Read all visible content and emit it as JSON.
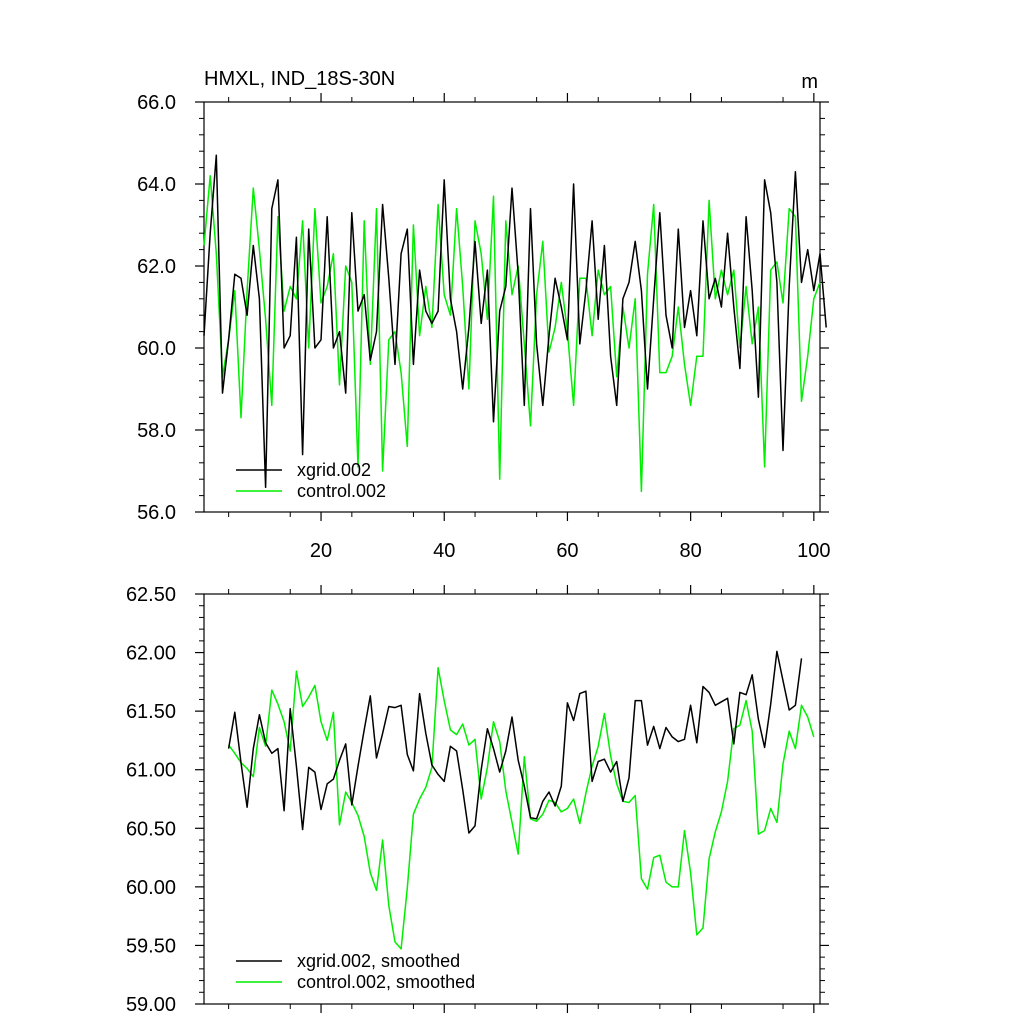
{
  "chart_data": [
    {
      "type": "line",
      "title": "HMXL, IND_18S-30N",
      "units": "m",
      "xlim": [
        1,
        101
      ],
      "ylim": [
        56.0,
        66.0
      ],
      "x_ticks": [
        20,
        40,
        60,
        80,
        100
      ],
      "x_tick_labels": [
        "20",
        "40",
        "60",
        "80",
        "100"
      ],
      "y_ticks": [
        56.0,
        58.0,
        60.0,
        62.0,
        64.0,
        66.0
      ],
      "y_tick_labels": [
        "56.0",
        "58.0",
        "60.0",
        "62.0",
        "64.0",
        "66.0"
      ],
      "legend_position": "bottom-left",
      "series": [
        {
          "name": "xgrid.002",
          "color": "#000000",
          "values": [
            60.3,
            62.8,
            64.7,
            58.9,
            60.2,
            61.8,
            61.7,
            60.8,
            62.5,
            61.2,
            56.6,
            63.4,
            64.1,
            60.0,
            60.3,
            62.7,
            57.4,
            62.9,
            60.0,
            60.2,
            63.2,
            60.0,
            60.4,
            58.9,
            63.3,
            60.9,
            61.3,
            59.7,
            60.4,
            63.5,
            61.7,
            59.6,
            62.3,
            62.9,
            59.6,
            61.9,
            60.9,
            60.6,
            60.9,
            64.1,
            61.2,
            60.4,
            59.0,
            60.5,
            62.6,
            60.6,
            61.9,
            58.2,
            60.9,
            61.5,
            63.9,
            61.8,
            58.6,
            63.4,
            60.1,
            58.6,
            60.3,
            61.7,
            61.0,
            60.2,
            64.0,
            60.1,
            61.4,
            63.1,
            60.7,
            62.5,
            59.8,
            58.6,
            61.2,
            61.6,
            62.6,
            61.4,
            59.0,
            61.2,
            63.3,
            60.8,
            60.0,
            62.9,
            60.5,
            61.4,
            60.3,
            63.1,
            61.2,
            61.7,
            61.0,
            62.8,
            61.0,
            59.5,
            63.2,
            61.4,
            58.8,
            64.1,
            63.3,
            61.6,
            57.5,
            61.5,
            64.3,
            61.6,
            62.4,
            61.4,
            62.3,
            60.5
          ]
        },
        {
          "name": "control.002",
          "color": "#00ee00",
          "values": [
            62.5,
            64.2,
            62.3,
            59.3,
            60.2,
            61.4,
            58.3,
            61.4,
            63.9,
            62.4,
            60.7,
            58.6,
            63.2,
            60.9,
            61.5,
            61.2,
            63.1,
            60.0,
            63.4,
            61.1,
            61.5,
            62.3,
            59.1,
            62.0,
            61.6,
            57.1,
            63.1,
            59.6,
            63.4,
            57.0,
            60.2,
            60.4,
            59.4,
            57.6,
            63.0,
            60.3,
            61.5,
            60.5,
            63.5,
            61.3,
            60.8,
            63.4,
            61.5,
            59.0,
            63.1,
            62.3,
            60.7,
            63.7,
            56.8,
            63.1,
            61.3,
            62.0,
            60.1,
            58.1,
            61.3,
            62.6,
            59.9,
            60.5,
            61.6,
            60.4,
            58.6,
            61.7,
            61.7,
            60.3,
            61.9,
            61.3,
            61.5,
            59.3,
            61.0,
            60.0,
            61.2,
            56.5,
            61.8,
            63.5,
            59.4,
            59.4,
            59.8,
            61.0,
            59.6,
            58.6,
            59.8,
            59.8,
            63.6,
            61.2,
            61.9,
            61.3,
            61.9,
            60.0,
            61.5,
            60.1,
            61.0,
            57.1,
            61.9,
            62.1,
            61.1,
            63.4,
            63.2,
            58.7,
            59.8,
            61.2,
            61.6
          ]
        }
      ]
    },
    {
      "type": "line",
      "xlim": [
        1,
        101
      ],
      "ylim": [
        59.0,
        62.5
      ],
      "x_ticks": [
        20,
        40,
        60,
        80,
        100
      ],
      "y_ticks": [
        59.0,
        59.5,
        60.0,
        60.5,
        61.0,
        61.5,
        62.0,
        62.5
      ],
      "y_tick_labels": [
        "59.00",
        "59.50",
        "60.00",
        "60.50",
        "61.00",
        "61.50",
        "62.00",
        "62.50"
      ],
      "legend_position": "bottom-left",
      "series": [
        {
          "name": "xgrid.002, smoothed",
          "color": "#000000",
          "x_start": 5,
          "values": [
            61.18,
            61.49,
            61.06,
            60.68,
            61.18,
            61.47,
            61.23,
            61.14,
            61.18,
            60.65,
            61.52,
            61.03,
            60.49,
            61.02,
            60.98,
            60.66,
            60.88,
            60.92,
            61.08,
            61.22,
            60.7,
            61.03,
            61.34,
            61.63,
            61.1,
            61.31,
            61.54,
            61.53,
            61.55,
            61.13,
            60.99,
            61.65,
            61.31,
            61.04,
            60.96,
            60.9,
            61.2,
            61.16,
            60.83,
            60.46,
            60.52,
            61.0,
            61.35,
            61.18,
            60.98,
            61.16,
            61.45,
            61.08,
            60.86,
            60.59,
            60.58,
            60.73,
            60.81,
            60.69,
            60.86,
            61.57,
            61.42,
            61.65,
            61.67,
            60.9,
            61.07,
            61.09,
            60.98,
            61.07,
            60.73,
            60.93,
            61.59,
            61.59,
            61.21,
            61.37,
            61.18,
            61.36,
            61.28,
            61.24,
            61.26,
            61.55,
            61.23,
            61.71,
            61.66,
            61.55,
            61.58,
            61.61,
            61.22,
            61.66,
            61.64,
            61.81,
            61.43,
            61.19,
            61.56,
            62.01,
            61.76,
            61.51,
            61.55,
            61.95
          ]
        },
        {
          "name": "control.002, smoothed",
          "color": "#00ee00",
          "x_start": 5,
          "values": [
            61.21,
            61.14,
            61.06,
            61.01,
            60.94,
            61.36,
            61.2,
            61.68,
            61.56,
            61.41,
            61.16,
            61.84,
            61.54,
            61.62,
            61.72,
            61.41,
            61.25,
            61.49,
            60.53,
            60.81,
            60.72,
            60.61,
            60.43,
            60.12,
            59.97,
            60.4,
            59.84,
            59.53,
            59.47,
            59.99,
            60.62,
            60.75,
            60.85,
            61.02,
            61.87,
            61.59,
            61.34,
            61.3,
            61.39,
            61.21,
            61.26,
            60.75,
            61.02,
            61.41,
            61.24,
            60.82,
            60.55,
            60.28,
            61.11,
            60.58,
            60.56,
            60.62,
            60.74,
            60.72,
            60.64,
            60.67,
            60.75,
            60.54,
            60.8,
            61.03,
            61.2,
            61.48,
            61.12,
            60.88,
            60.73,
            60.72,
            60.78,
            60.07,
            59.98,
            60.25,
            60.27,
            60.04,
            60.0,
            60.0,
            60.48,
            60.12,
            59.59,
            59.65,
            60.24,
            60.47,
            60.64,
            60.9,
            61.35,
            61.38,
            61.59,
            61.33,
            60.45,
            60.48,
            60.67,
            60.55,
            61.05,
            61.33,
            61.18,
            61.55,
            61.45,
            61.28
          ]
        }
      ]
    }
  ]
}
